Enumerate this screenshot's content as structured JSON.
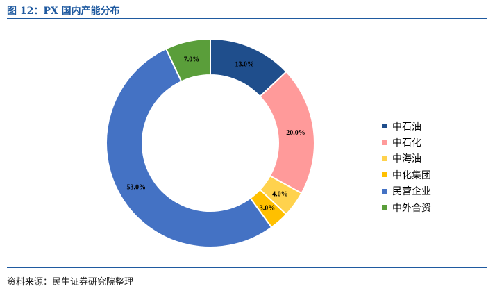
{
  "header": {
    "title": "图 12：PX 国内产能分布"
  },
  "footer": {
    "source": "资料来源：民生证券研究院整理"
  },
  "chart_data": {
    "type": "pie",
    "subtype": "donut",
    "categories": [
      "中石油",
      "中石化",
      "中海油",
      "中化集团",
      "民营企业",
      "中外合资"
    ],
    "values": [
      13.0,
      20.0,
      4.0,
      3.0,
      53.0,
      7.0
    ],
    "labels": [
      "13.0%",
      "20.0%",
      "4.0%",
      "3.0%",
      "53.0%",
      "7.0%"
    ],
    "colors": [
      "#1f4e8c",
      "#ff9a9a",
      "#ffd24d",
      "#ffc000",
      "#4472c4",
      "#5a9e3a"
    ],
    "legend_position": "right"
  }
}
